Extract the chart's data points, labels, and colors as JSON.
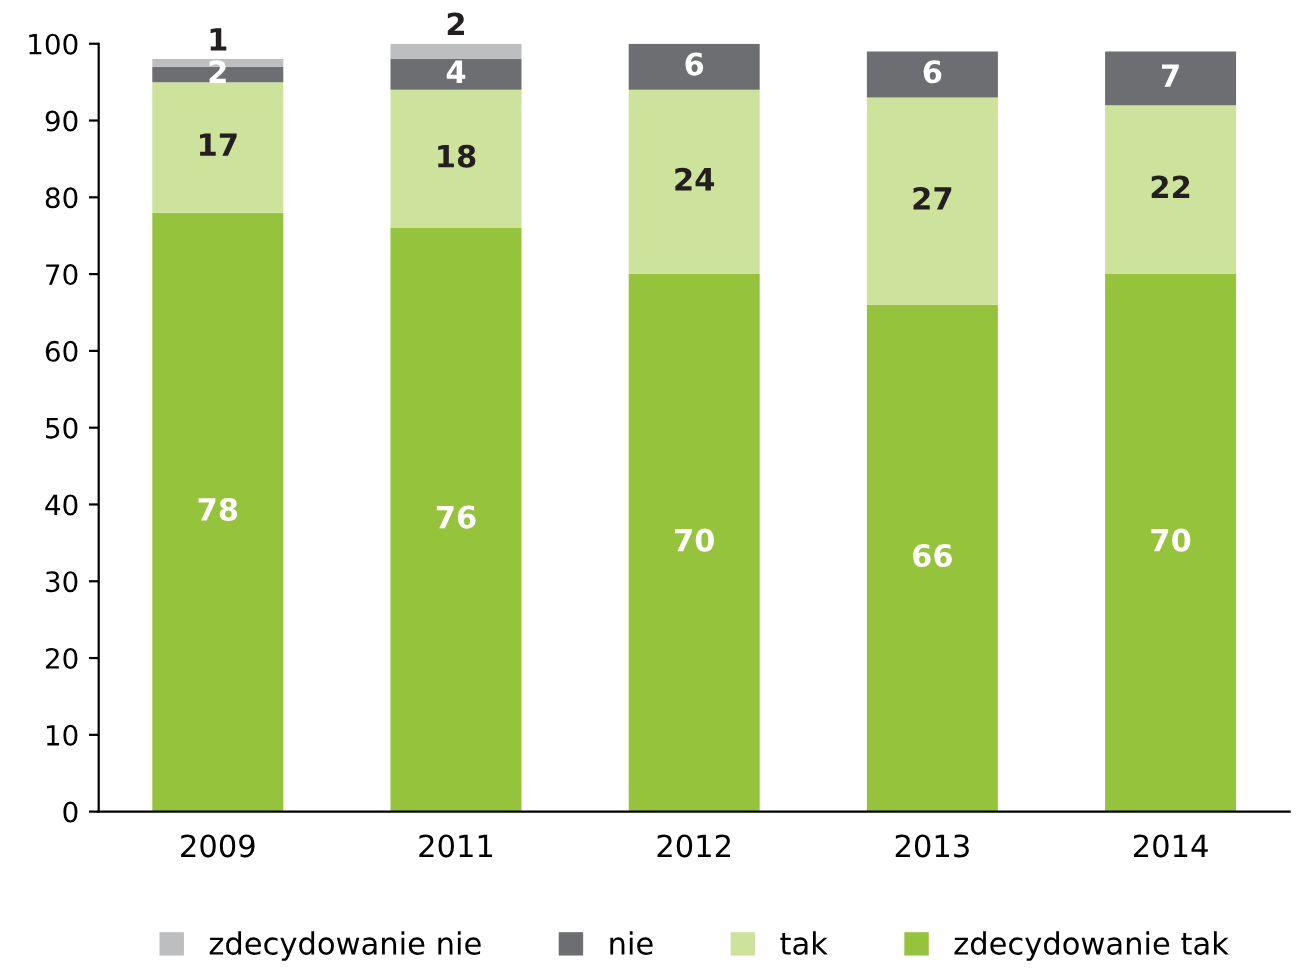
{
  "chart_data": {
    "type": "bar",
    "stacked": true,
    "categories": [
      "2009",
      "2011",
      "2012",
      "2013",
      "2014"
    ],
    "series": [
      {
        "name": "zdecydowanie tak",
        "color": "#96c33c",
        "values": [
          78,
          76,
          70,
          66,
          70
        ]
      },
      {
        "name": "tak",
        "color": "#cde29b",
        "values": [
          17,
          18,
          24,
          27,
          22
        ]
      },
      {
        "name": "nie",
        "color": "#6d6e71",
        "values": [
          2,
          4,
          6,
          6,
          7
        ]
      },
      {
        "name": "zdecydowanie nie",
        "color": "#bcbec0",
        "values": [
          1,
          2,
          null,
          null,
          null
        ]
      }
    ],
    "ylim": [
      0,
      100
    ],
    "yticks": [
      0,
      10,
      20,
      30,
      40,
      50,
      60,
      70,
      80,
      90,
      100
    ],
    "grid": false,
    "legend": "bottom",
    "data_labels": true
  }
}
